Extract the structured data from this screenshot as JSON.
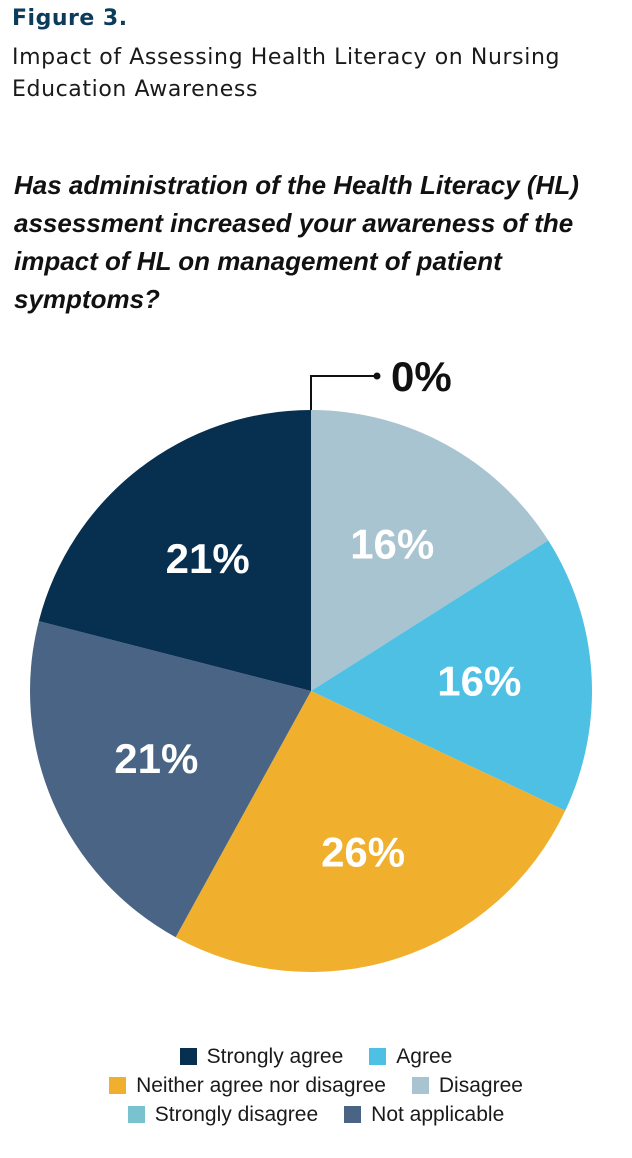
{
  "figure": {
    "label": "Figure 3.",
    "title": "Impact of Assessing Health Literacy on Nursing Education Awareness"
  },
  "question": "Has administration of the Health Literacy (HL) assessment increased your awareness of the impact of  HL on management of patient symptoms?",
  "chart_data": {
    "type": "pie",
    "title": "Has administration of the Health Literacy (HL) assessment increased your awareness of the impact of  HL on management of patient symptoms?",
    "slices": [
      {
        "name": "Disagree",
        "value": 16,
        "label": "16%",
        "color": "#a8c4d1"
      },
      {
        "name": "Agree",
        "value": 16,
        "label": "16%",
        "color": "#4ec0e4"
      },
      {
        "name": "Neither agree nor disagree",
        "value": 26,
        "label": "26%",
        "color": "#f0b02d"
      },
      {
        "name": "Not applicable",
        "value": 21,
        "label": "21%",
        "color": "#4a6485"
      },
      {
        "name": "Strongly agree",
        "value": 21,
        "label": "21%",
        "color": "#062f50"
      },
      {
        "name": "Strongly disagree",
        "value": 0,
        "label": "0%",
        "color": "#78c3cf"
      }
    ],
    "legend_position": "bottom",
    "legend": [
      [
        "Strongly agree",
        "Agree"
      ],
      [
        "Neither agree nor disagree",
        "Disagree"
      ],
      [
        "Strongly disagree",
        "Not applicable"
      ]
    ]
  }
}
